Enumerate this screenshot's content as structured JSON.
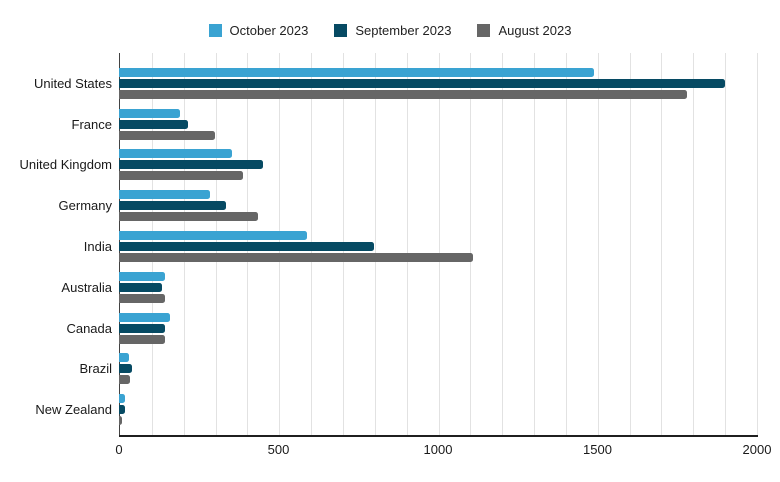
{
  "legend": {
    "position": "top-center",
    "items": [
      {
        "label": "October 2023",
        "color": "#3aa3d2"
      },
      {
        "label": "September 2023",
        "color": "#064a63"
      },
      {
        "label": "August 2023",
        "color": "#666666"
      }
    ]
  },
  "chart_data": {
    "type": "bar",
    "orientation": "horizontal",
    "title": "",
    "xlabel": "",
    "ylabel": "",
    "categories": [
      "United States",
      "France",
      "United Kingdom",
      "Germany",
      "India",
      "Australia",
      "Canada",
      "Brazil",
      "New Zealand"
    ],
    "series": [
      {
        "name": "October 2023",
        "color": "#3aa3d2",
        "values": [
          1490,
          190,
          355,
          285,
          590,
          145,
          160,
          30,
          20
        ]
      },
      {
        "name": "September 2023",
        "color": "#064a63",
        "values": [
          1900,
          215,
          450,
          335,
          800,
          135,
          145,
          40,
          18
        ]
      },
      {
        "name": "August 2023",
        "color": "#666666",
        "values": [
          1780,
          300,
          390,
          435,
          1110,
          145,
          145,
          35,
          9
        ]
      }
    ],
    "xlim": [
      0,
      2000
    ],
    "x_ticks": [
      0,
      500,
      1000,
      1500,
      2000
    ],
    "gridline_step": 100,
    "grid": true,
    "legend_position": "top",
    "background": "#ffffff",
    "axis_color": "#424242",
    "gridline_color": "#e2e2e2"
  }
}
